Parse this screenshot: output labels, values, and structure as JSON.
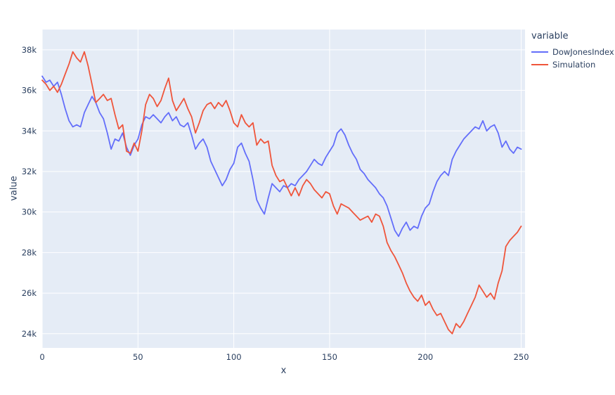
{
  "chart_data": {
    "type": "line",
    "title": "",
    "xlabel": "x",
    "ylabel": "value",
    "legend_title": "variable",
    "xlim": [
      0,
      252
    ],
    "ylim": [
      23.3,
      39.0
    ],
    "xticks": [
      0,
      50,
      100,
      150,
      200,
      250
    ],
    "yticks": [
      24,
      26,
      28,
      30,
      32,
      34,
      36,
      38
    ],
    "ytick_labels": [
      "24k",
      "26k",
      "28k",
      "30k",
      "32k",
      "34k",
      "36k",
      "38k"
    ],
    "grid": true,
    "legend_position": "right",
    "x_step": 2,
    "series": [
      {
        "name": "DowJonesIndex",
        "color": "#636efa",
        "values_k": [
          36.7,
          36.4,
          36.5,
          36.2,
          36.4,
          35.8,
          35.1,
          34.5,
          34.2,
          34.3,
          34.2,
          34.9,
          35.3,
          35.7,
          35.4,
          34.9,
          34.6,
          33.9,
          33.1,
          33.6,
          33.5,
          33.9,
          33.2,
          32.8,
          33.3,
          33.6,
          34.3,
          34.7,
          34.6,
          34.8,
          34.6,
          34.4,
          34.7,
          34.9,
          34.5,
          34.7,
          34.3,
          34.2,
          34.4,
          33.8,
          33.1,
          33.4,
          33.6,
          33.2,
          32.5,
          32.1,
          31.7,
          31.3,
          31.6,
          32.1,
          32.4,
          33.2,
          33.4,
          32.9,
          32.5,
          31.6,
          30.6,
          30.2,
          29.9,
          30.7,
          31.4,
          31.2,
          31.0,
          31.3,
          31.2,
          31.4,
          31.3,
          31.6,
          31.8,
          32.0,
          32.3,
          32.6,
          32.4,
          32.3,
          32.7,
          33.0,
          33.3,
          33.9,
          34.1,
          33.8,
          33.3,
          32.9,
          32.6,
          32.1,
          31.9,
          31.6,
          31.4,
          31.2,
          30.9,
          30.7,
          30.3,
          29.7,
          29.1,
          28.8,
          29.2,
          29.5,
          29.1,
          29.3,
          29.2,
          29.8,
          30.2,
          30.4,
          31.0,
          31.5,
          31.8,
          32.0,
          31.8,
          32.6,
          33.0,
          33.3,
          33.6,
          33.8,
          34.0,
          34.2,
          34.1,
          34.5,
          34.0,
          34.2,
          34.3,
          33.9,
          33.2,
          33.5,
          33.1,
          32.9,
          33.2,
          33.1
        ]
      },
      {
        "name": "Simulation",
        "color": "#ef553b",
        "values_k": [
          36.5,
          36.3,
          36.0,
          36.2,
          35.9,
          36.3,
          36.8,
          37.3,
          37.9,
          37.6,
          37.4,
          37.9,
          37.2,
          36.3,
          35.4,
          35.6,
          35.8,
          35.5,
          35.6,
          34.8,
          34.1,
          34.3,
          33.0,
          32.9,
          33.4,
          33.0,
          34.0,
          35.3,
          35.8,
          35.6,
          35.2,
          35.5,
          36.1,
          36.6,
          35.5,
          35.0,
          35.3,
          35.6,
          35.1,
          34.7,
          33.9,
          34.4,
          35.0,
          35.3,
          35.4,
          35.1,
          35.4,
          35.2,
          35.5,
          35.0,
          34.4,
          34.2,
          34.8,
          34.4,
          34.2,
          34.4,
          33.3,
          33.6,
          33.4,
          33.5,
          32.3,
          31.8,
          31.5,
          31.6,
          31.2,
          30.8,
          31.2,
          30.8,
          31.3,
          31.6,
          31.4,
          31.1,
          30.9,
          30.7,
          31.0,
          30.9,
          30.3,
          29.9,
          30.4,
          30.3,
          30.2,
          30.0,
          29.8,
          29.6,
          29.7,
          29.8,
          29.5,
          29.9,
          29.8,
          29.3,
          28.5,
          28.1,
          27.8,
          27.4,
          27.0,
          26.5,
          26.1,
          25.8,
          25.6,
          25.9,
          25.4,
          25.6,
          25.2,
          24.9,
          25.0,
          24.6,
          24.2,
          24.0,
          24.5,
          24.3,
          24.6,
          25.0,
          25.4,
          25.8,
          26.4,
          26.1,
          25.8,
          26.0,
          25.7,
          26.5,
          27.1,
          28.3,
          28.6,
          28.8,
          29.0,
          29.3
        ]
      }
    ],
    "colors": {
      "plot_bg": "#e5ecf6",
      "grid": "#ffffff",
      "text": "#2a3f5f",
      "paper_bg": "#ffffff"
    }
  }
}
